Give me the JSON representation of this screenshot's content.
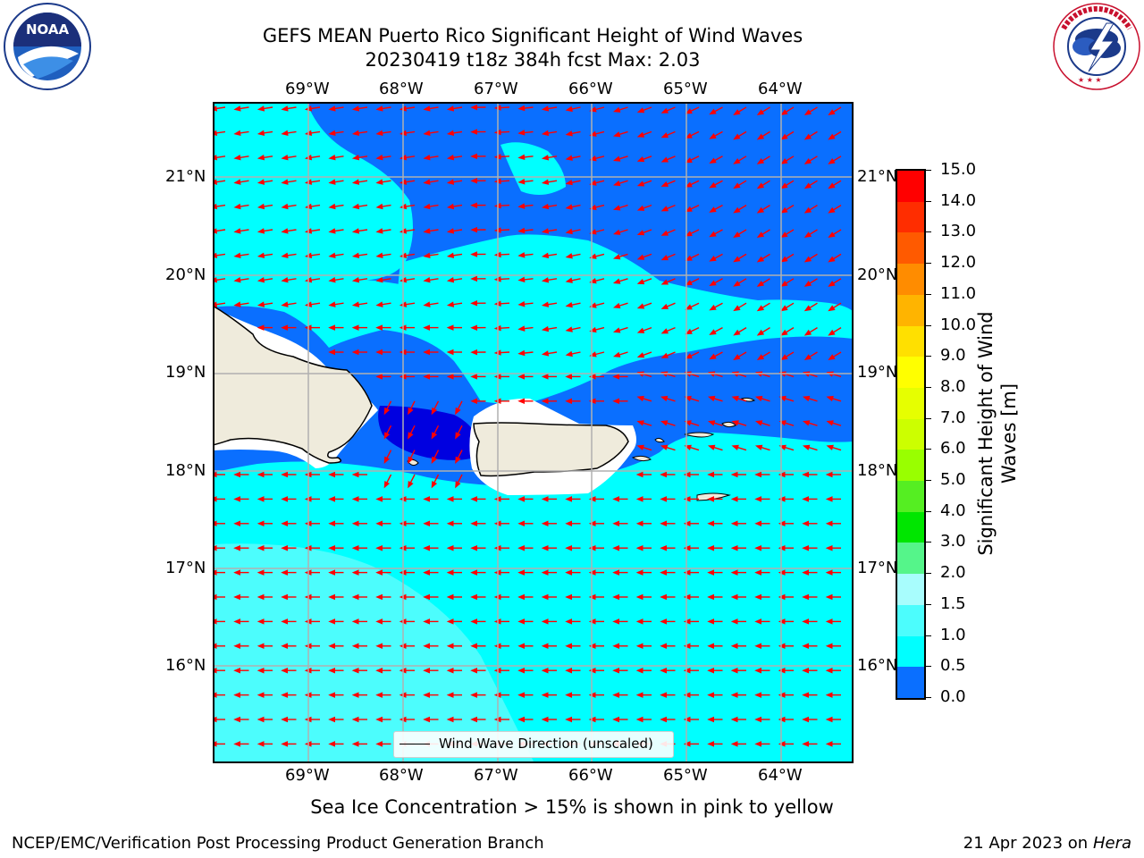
{
  "title": {
    "line1": "GEFS MEAN Puerto Rico Significant Height of Wind Waves",
    "line2": "20230419 t18z 384h fcst   Max: 2.03"
  },
  "logos": {
    "noara_text": "NOAA",
    "noaa_ring_text": "NATIONAL OCEANIC AND ATMOSPHERIC ADMINISTRATION · U.S. DEPARTMENT OF COMMERCE",
    "nws_ring_text": "NATIONAL WEATHER SERVICE"
  },
  "map": {
    "lon_labels": [
      "69°W",
      "68°W",
      "67°W",
      "66°W",
      "65°W",
      "64°W"
    ],
    "lat_labels": [
      "21°N",
      "20°N",
      "19°N",
      "18°N",
      "17°N",
      "16°N"
    ],
    "legend_text": "Wind Wave Direction (unscaled)",
    "colors": {
      "land": "#efebdc",
      "ocean_0": "#0000ff",
      "ocean_0_5": "#0a6fff",
      "ocean_1": "#00ffff",
      "ocean_1_5": "#4cfdfd",
      "arrow": "#ff0000"
    }
  },
  "colorbar": {
    "ticks": [
      "15.0",
      "14.0",
      "13.0",
      "12.0",
      "11.0",
      "10.0",
      "9.0",
      "8.0",
      "7.0",
      "6.0",
      "5.0",
      "4.0",
      "3.0",
      "2.0",
      "1.5",
      "1.0",
      "0.5",
      "0.0"
    ],
    "colors": [
      "#ff0000",
      "#ff2d00",
      "#ff5a00",
      "#ff8c00",
      "#ffb400",
      "#ffe000",
      "#ffff00",
      "#e6ff00",
      "#ccff00",
      "#99ff00",
      "#55ee22",
      "#00e600",
      "#55f58a",
      "#a8fdfd",
      "#4cfdfd",
      "#00ffff",
      "#0a6fff",
      "#0000ff"
    ],
    "label": "Significant Height of Wind Waves [m]"
  },
  "subtitle": "Sea Ice Concentration > 15% is shown in pink to yellow",
  "footer": {
    "left": "NCEP/EMC/Verification Post Processing Product Generation Branch",
    "right_date": "21 Apr 2023 on ",
    "right_host": "Hera"
  }
}
